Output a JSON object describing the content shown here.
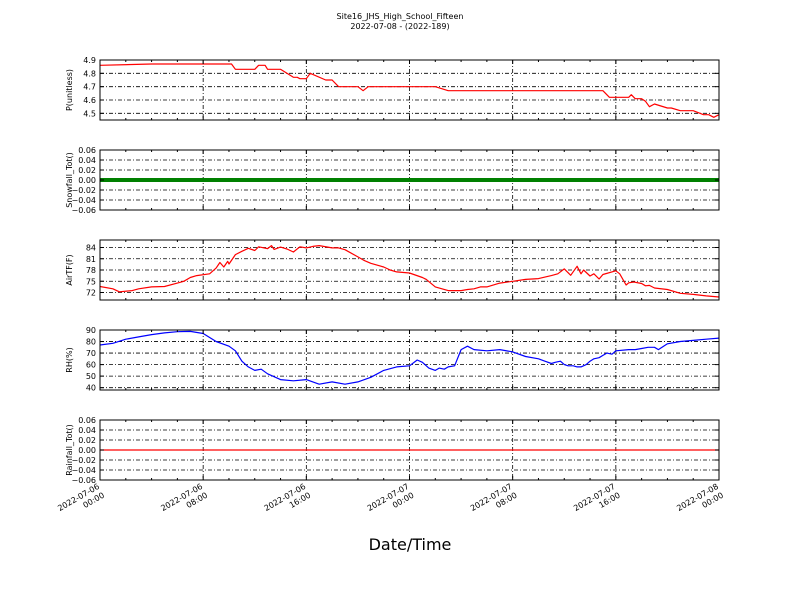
{
  "title": "Site16_JHS_High_School_Fifteen",
  "subtitle": "2022-07-08 - (2022-189)",
  "xlabel": "Date/Time",
  "colors": {
    "red": "#ff0000",
    "green": "#008000",
    "blue": "#0000ff",
    "grid": "#000000"
  },
  "x_ticks": [
    [
      "2022-07-06",
      "00:00"
    ],
    [
      "2022-07-06",
      "08:00"
    ],
    [
      "2022-07-06",
      "16:00"
    ],
    [
      "2022-07-07",
      "00:00"
    ],
    [
      "2022-07-07",
      "08:00"
    ],
    [
      "2022-07-07",
      "16:00"
    ],
    [
      "2022-07-08",
      "00:00"
    ]
  ],
  "chart_data": [
    {
      "type": "line",
      "ylabel": "P(unitless)",
      "ylim": [
        4.45,
        4.9
      ],
      "yticks": [
        "4.5",
        "4.6",
        "4.7",
        "4.8",
        "4.9"
      ],
      "ytick_values": [
        4.5,
        4.6,
        4.7,
        4.8,
        4.9
      ],
      "grid": true,
      "series": [
        {
          "color": "#ff0000",
          "x_hours": [
            0,
            4,
            8,
            10.2,
            10.5,
            12,
            12.3,
            12.8,
            13,
            14,
            15,
            15.3,
            15.5,
            16,
            16.3,
            17.5,
            18,
            18.5,
            20,
            20.4,
            20.8,
            22,
            25,
            26,
            27,
            28,
            31,
            34,
            35,
            36,
            38,
            39,
            39.5,
            40,
            41,
            41.2,
            41.5,
            42,
            42.3,
            42.6,
            43,
            44,
            44.3,
            45,
            45.5,
            46,
            46.8,
            47.2,
            47.6,
            48
          ],
          "values": [
            4.86,
            4.87,
            4.87,
            4.87,
            4.83,
            4.83,
            4.86,
            4.86,
            4.83,
            4.83,
            4.77,
            4.77,
            4.76,
            4.76,
            4.8,
            4.75,
            4.75,
            4.7,
            4.7,
            4.67,
            4.7,
            4.7,
            4.7,
            4.7,
            4.67,
            4.67,
            4.67,
            4.67,
            4.67,
            4.67,
            4.67,
            4.67,
            4.62,
            4.62,
            4.62,
            4.64,
            4.61,
            4.61,
            4.59,
            4.55,
            4.57,
            4.54,
            4.54,
            4.52,
            4.52,
            4.52,
            4.49,
            4.49,
            4.47,
            4.49
          ]
        }
      ]
    },
    {
      "type": "line",
      "ylabel": "Snowfall_Tot()",
      "ylim": [
        -0.06,
        0.06
      ],
      "yticks": [
        "−0.06",
        "−0.04",
        "−0.02",
        "0.00",
        "0.02",
        "0.04",
        "0.06"
      ],
      "ytick_values": [
        -0.06,
        -0.04,
        -0.02,
        0,
        0.02,
        0.04,
        0.06
      ],
      "grid": true,
      "series": [
        {
          "color": "#008000",
          "thick": true,
          "x_hours": [
            0,
            48
          ],
          "values": [
            0,
            0
          ]
        }
      ]
    },
    {
      "type": "line",
      "ylabel": "AirTF(F)",
      "ylim": [
        70,
        86
      ],
      "yticks": [
        "72",
        "75",
        "78",
        "81",
        "84"
      ],
      "ytick_values": [
        72,
        75,
        78,
        81,
        84
      ],
      "grid": true,
      "series": [
        {
          "color": "#ff0000",
          "x_hours": [
            0,
            1,
            1.5,
            2.5,
            3,
            4,
            5,
            6,
            6.5,
            7,
            7.5,
            8.5,
            9,
            9.3,
            9.6,
            9.9,
            10,
            10.5,
            11,
            11.5,
            12,
            12.3,
            13,
            13.3,
            13.5,
            14,
            14.5,
            15,
            15.5,
            16,
            16.5,
            17,
            18,
            18.5,
            19,
            20,
            20.5,
            21,
            22,
            22.5,
            23,
            24,
            25,
            25.3,
            26,
            27,
            28,
            28.5,
            29,
            29.5,
            30,
            31,
            32,
            33,
            34,
            35,
            35.5,
            36,
            36.5,
            37,
            37.3,
            37.5,
            38,
            38.3,
            38.7,
            39,
            40,
            40.3,
            40.8,
            41,
            41.4,
            42,
            42.3,
            42.6,
            43,
            44,
            45,
            46,
            47,
            48
          ],
          "values": [
            73.6,
            73,
            72.2,
            72.5,
            73,
            73.5,
            73.6,
            74.5,
            75,
            76,
            76.5,
            77,
            78.5,
            80,
            78.8,
            80.3,
            79.6,
            82.1,
            83,
            83.8,
            83.2,
            84.2,
            83.7,
            84.5,
            83.5,
            84.1,
            83.6,
            82.8,
            84.2,
            83.9,
            84.3,
            84.5,
            83.9,
            83.9,
            83.4,
            81.5,
            80.5,
            79.8,
            78.8,
            78,
            77.5,
            77.2,
            76,
            75.5,
            73.5,
            72.5,
            72.5,
            72.8,
            73,
            73.5,
            73.5,
            74.5,
            75,
            75.5,
            75.7,
            76.5,
            77,
            78.3,
            76.6,
            79,
            77,
            78,
            76.4,
            77,
            75.6,
            76.8,
            77.8,
            77,
            74,
            74.6,
            74.8,
            74.4,
            73.8,
            73.9,
            73.2,
            72.8,
            71.8,
            71.5,
            71.1,
            70.8
          ]
        }
      ]
    },
    {
      "type": "line",
      "ylabel": "RH(%)",
      "ylim": [
        38,
        90
      ],
      "yticks": [
        "40",
        "50",
        "60",
        "70",
        "80",
        "90"
      ],
      "ytick_values": [
        40,
        50,
        60,
        70,
        80,
        90
      ],
      "grid": true,
      "series": [
        {
          "color": "#0000ff",
          "x_hours": [
            0,
            1,
            2,
            3,
            4,
            5,
            6,
            7,
            8,
            9,
            10,
            10.5,
            11,
            11.5,
            12,
            12.5,
            13,
            14,
            15,
            16,
            17,
            18,
            19,
            20,
            21,
            22,
            23,
            24,
            24.6,
            25,
            25.5,
            26,
            26.3,
            26.7,
            27,
            27.5,
            28,
            28.5,
            29,
            30,
            31,
            32,
            33,
            34,
            34.5,
            35,
            35.3,
            35.7,
            36,
            36.3,
            36.7,
            37,
            37.3,
            37.7,
            38,
            38.3,
            38.7,
            39,
            39.3,
            39.7,
            40,
            41,
            41.5,
            42,
            42.5,
            43,
            43.3,
            44,
            45,
            46,
            47,
            48
          ],
          "values": [
            77,
            78.5,
            82,
            84,
            86,
            87.5,
            88.5,
            88.8,
            87,
            80,
            76,
            72,
            63,
            58,
            55,
            56,
            52,
            47,
            46,
            47,
            43,
            45,
            43,
            45,
            49,
            55,
            58,
            59,
            64,
            62,
            57,
            55,
            57,
            56,
            58,
            59,
            73,
            76,
            73,
            72,
            73,
            71,
            67,
            65,
            63,
            61,
            62,
            63,
            60,
            59,
            59,
            58,
            58,
            60,
            63,
            65,
            66,
            68,
            70,
            69,
            72,
            73,
            73,
            74,
            75,
            75,
            73,
            78,
            80,
            81,
            82,
            83
          ]
        }
      ]
    },
    {
      "type": "line",
      "ylabel": "Rainfall_Tot()",
      "ylim": [
        -0.06,
        0.06
      ],
      "yticks": [
        "−0.06",
        "−0.04",
        "−0.02",
        "0.00",
        "0.02",
        "0.04",
        "0.06"
      ],
      "ytick_values": [
        -0.06,
        -0.04,
        -0.02,
        0,
        0.02,
        0.04,
        0.06
      ],
      "grid": true,
      "series": [
        {
          "color": "#ff0000",
          "x_hours": [
            0,
            48
          ],
          "values": [
            0,
            0
          ]
        }
      ]
    }
  ]
}
